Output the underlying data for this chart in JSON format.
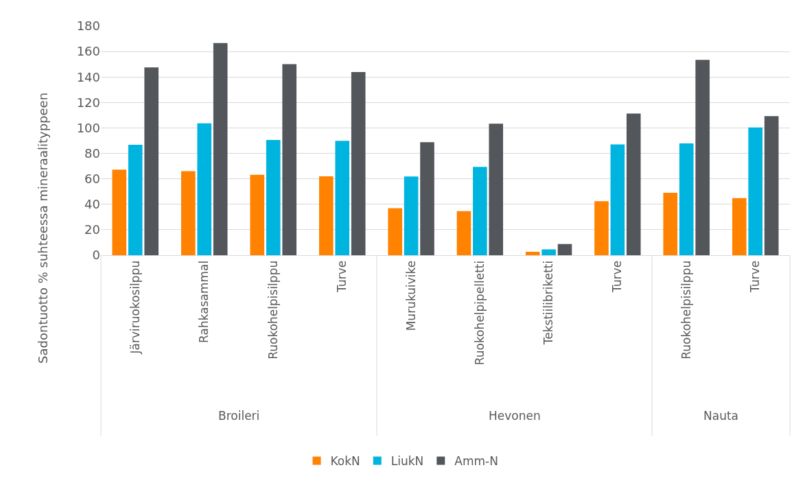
{
  "chart_data": [
    {
      "type": "bar",
      "ylabel": "Sadontuotto % suhteessa mineraalityppeen",
      "xlabel": "Broileri",
      "categories": [
        "Järviruokosilppu",
        "Rahkasammal",
        "Ruokohelpisilppu",
        "Turve"
      ],
      "series": [
        {
          "name": "KokN",
          "color": "#ff8200",
          "values": [
            67.2,
            66,
            63.2,
            62
          ]
        },
        {
          "name": "LiukN",
          "color": "#00b4e0",
          "values": [
            86.8,
            103.6,
            90.6,
            89.8
          ]
        },
        {
          "name": "Amm-N",
          "color": "#53565a",
          "values": [
            147.5,
            166.6,
            150.1,
            143.9
          ]
        }
      ],
      "ylim": [
        0,
        180
      ],
      "yticks": [
        0,
        20,
        40,
        60,
        80,
        100,
        120,
        140,
        160,
        180
      ],
      "grid": "y",
      "legend": "bottom"
    },
    {
      "type": "bar",
      "xlabel": "Hevonen",
      "categories": [
        "Murukuivike",
        "Ruokohelpipelletti",
        "Tekstiilibriketti",
        "Turve"
      ],
      "series": [
        {
          "color": "#ff8200",
          "values": [
            36.9,
            34.6,
            2.7,
            42.5
          ]
        },
        {
          "color": "#00b4e0",
          "values": [
            61.9,
            69.4,
            4.6,
            87.1
          ]
        },
        {
          "color": "#53565a",
          "values": [
            88.8,
            103.3,
            8.8,
            111.3
          ]
        }
      ],
      "ylim": [
        0,
        180
      ],
      "yticks": [
        0,
        20,
        40,
        60,
        80,
        100,
        120,
        140,
        160,
        180
      ],
      "grid": "y",
      "tick_labels": "x"
    },
    {
      "type": "bar",
      "xlabel": "Nauta",
      "categories": [
        "Ruokohelpisilppu",
        "Turve"
      ],
      "series": [
        {
          "color": "#ff8200",
          "values": [
            49,
            44.8
          ]
        },
        {
          "color": "#00b4e0",
          "values": [
            87.9,
            100.4
          ]
        },
        {
          "color": "#53565a",
          "values": [
            153.5,
            109.2
          ]
        }
      ],
      "ylim": [
        0,
        180
      ],
      "yticks": [
        0,
        20,
        40,
        60,
        80,
        100,
        120,
        140,
        160,
        180
      ],
      "grid": "y",
      "tick_labels": "x"
    }
  ]
}
